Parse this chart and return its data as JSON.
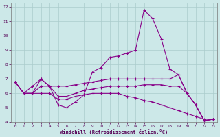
{
  "xlabel": "Windchill (Refroidissement éolien,°C)",
  "background_color": "#cce8e8",
  "grid_color": "#aacccc",
  "line_color": "#880088",
  "xlim": [
    -0.5,
    23.5
  ],
  "ylim": [
    4,
    12.3
  ],
  "yticks": [
    4,
    5,
    6,
    7,
    8,
    9,
    10,
    11,
    12
  ],
  "xticks": [
    0,
    1,
    2,
    3,
    4,
    5,
    6,
    7,
    8,
    9,
    10,
    11,
    12,
    13,
    14,
    15,
    16,
    17,
    18,
    19,
    20,
    21,
    22,
    23
  ],
  "series": [
    [
      6.8,
      6.0,
      6.0,
      7.0,
      6.5,
      5.2,
      5.0,
      5.4,
      5.9,
      7.5,
      7.8,
      8.5,
      8.6,
      8.8,
      9.0,
      11.8,
      11.2,
      9.8,
      7.7,
      7.3,
      6.0,
      5.2,
      4.1,
      4.2
    ],
    [
      6.8,
      6.0,
      6.5,
      7.0,
      6.5,
      6.5,
      6.5,
      6.6,
      6.7,
      6.8,
      6.9,
      7.0,
      7.0,
      7.0,
      7.0,
      7.0,
      7.0,
      7.0,
      7.0,
      7.3,
      6.0,
      5.2,
      4.1,
      4.2
    ],
    [
      6.8,
      6.0,
      6.0,
      6.5,
      6.5,
      5.8,
      5.8,
      6.0,
      6.2,
      6.3,
      6.4,
      6.5,
      6.5,
      6.5,
      6.5,
      6.6,
      6.6,
      6.6,
      6.5,
      6.5,
      6.0,
      5.2,
      4.1,
      4.2
    ],
    [
      6.8,
      6.0,
      6.0,
      6.0,
      6.0,
      5.6,
      5.6,
      5.8,
      5.9,
      6.0,
      6.0,
      6.0,
      6.0,
      5.8,
      5.7,
      5.5,
      5.4,
      5.2,
      5.0,
      4.8,
      4.6,
      4.4,
      4.2,
      4.2
    ]
  ]
}
